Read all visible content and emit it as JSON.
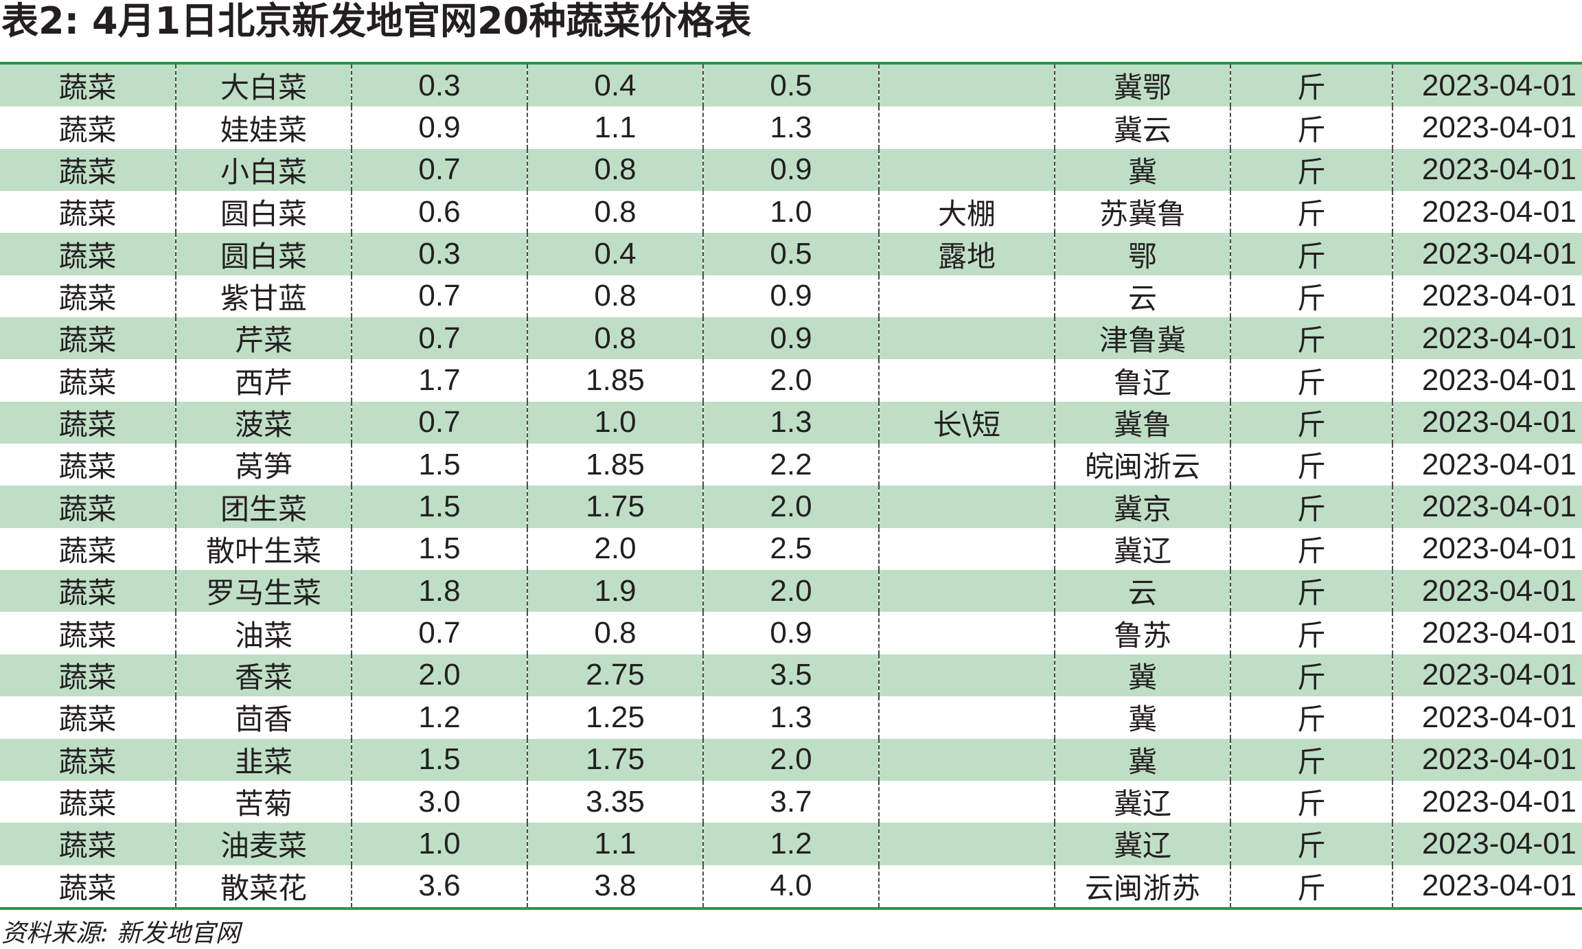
{
  "title": "表2: 4月1日北京新发地官网20种蔬菜价格表",
  "source": "资料来源: 新发地官网",
  "colors": {
    "rule": "#1f9a4a",
    "row_shade": "#bfdec6",
    "text": "#231f20"
  },
  "rows": [
    {
      "category": "蔬菜",
      "name": "大白菜",
      "low": "0.3",
      "avg": "0.4",
      "high": "0.5",
      "spec": "",
      "origin": "冀鄂",
      "unit": "斤",
      "date": "2023-04-01"
    },
    {
      "category": "蔬菜",
      "name": "娃娃菜",
      "low": "0.9",
      "avg": "1.1",
      "high": "1.3",
      "spec": "",
      "origin": "冀云",
      "unit": "斤",
      "date": "2023-04-01"
    },
    {
      "category": "蔬菜",
      "name": "小白菜",
      "low": "0.7",
      "avg": "0.8",
      "high": "0.9",
      "spec": "",
      "origin": "冀",
      "unit": "斤",
      "date": "2023-04-01"
    },
    {
      "category": "蔬菜",
      "name": "圆白菜",
      "low": "0.6",
      "avg": "0.8",
      "high": "1.0",
      "spec": "大棚",
      "origin": "苏冀鲁",
      "unit": "斤",
      "date": "2023-04-01"
    },
    {
      "category": "蔬菜",
      "name": "圆白菜",
      "low": "0.3",
      "avg": "0.4",
      "high": "0.5",
      "spec": "露地",
      "origin": "鄂",
      "unit": "斤",
      "date": "2023-04-01"
    },
    {
      "category": "蔬菜",
      "name": "紫甘蓝",
      "low": "0.7",
      "avg": "0.8",
      "high": "0.9",
      "spec": "",
      "origin": "云",
      "unit": "斤",
      "date": "2023-04-01"
    },
    {
      "category": "蔬菜",
      "name": "芹菜",
      "low": "0.7",
      "avg": "0.8",
      "high": "0.9",
      "spec": "",
      "origin": "津鲁冀",
      "unit": "斤",
      "date": "2023-04-01"
    },
    {
      "category": "蔬菜",
      "name": "西芹",
      "low": "1.7",
      "avg": "1.85",
      "high": "2.0",
      "spec": "",
      "origin": "鲁辽",
      "unit": "斤",
      "date": "2023-04-01"
    },
    {
      "category": "蔬菜",
      "name": "菠菜",
      "low": "0.7",
      "avg": "1.0",
      "high": "1.3",
      "spec": "长\\短",
      "origin": "冀鲁",
      "unit": "斤",
      "date": "2023-04-01"
    },
    {
      "category": "蔬菜",
      "name": "莴笋",
      "low": "1.5",
      "avg": "1.85",
      "high": "2.2",
      "spec": "",
      "origin": "皖闽浙云",
      "unit": "斤",
      "date": "2023-04-01"
    },
    {
      "category": "蔬菜",
      "name": "团生菜",
      "low": "1.5",
      "avg": "1.75",
      "high": "2.0",
      "spec": "",
      "origin": "冀京",
      "unit": "斤",
      "date": "2023-04-01"
    },
    {
      "category": "蔬菜",
      "name": "散叶生菜",
      "low": "1.5",
      "avg": "2.0",
      "high": "2.5",
      "spec": "",
      "origin": "冀辽",
      "unit": "斤",
      "date": "2023-04-01"
    },
    {
      "category": "蔬菜",
      "name": "罗马生菜",
      "low": "1.8",
      "avg": "1.9",
      "high": "2.0",
      "spec": "",
      "origin": "云",
      "unit": "斤",
      "date": "2023-04-01"
    },
    {
      "category": "蔬菜",
      "name": "油菜",
      "low": "0.7",
      "avg": "0.8",
      "high": "0.9",
      "spec": "",
      "origin": "鲁苏",
      "unit": "斤",
      "date": "2023-04-01"
    },
    {
      "category": "蔬菜",
      "name": "香菜",
      "low": "2.0",
      "avg": "2.75",
      "high": "3.5",
      "spec": "",
      "origin": "冀",
      "unit": "斤",
      "date": "2023-04-01"
    },
    {
      "category": "蔬菜",
      "name": "茴香",
      "low": "1.2",
      "avg": "1.25",
      "high": "1.3",
      "spec": "",
      "origin": "冀",
      "unit": "斤",
      "date": "2023-04-01"
    },
    {
      "category": "蔬菜",
      "name": "韭菜",
      "low": "1.5",
      "avg": "1.75",
      "high": "2.0",
      "spec": "",
      "origin": "冀",
      "unit": "斤",
      "date": "2023-04-01"
    },
    {
      "category": "蔬菜",
      "name": "苦菊",
      "low": "3.0",
      "avg": "3.35",
      "high": "3.7",
      "spec": "",
      "origin": "冀辽",
      "unit": "斤",
      "date": "2023-04-01"
    },
    {
      "category": "蔬菜",
      "name": "油麦菜",
      "low": "1.0",
      "avg": "1.1",
      "high": "1.2",
      "spec": "",
      "origin": "冀辽",
      "unit": "斤",
      "date": "2023-04-01"
    },
    {
      "category": "蔬菜",
      "name": "散菜花",
      "low": "3.6",
      "avg": "3.8",
      "high": "4.0",
      "spec": "",
      "origin": "云闽浙苏",
      "unit": "斤",
      "date": "2023-04-01"
    }
  ]
}
